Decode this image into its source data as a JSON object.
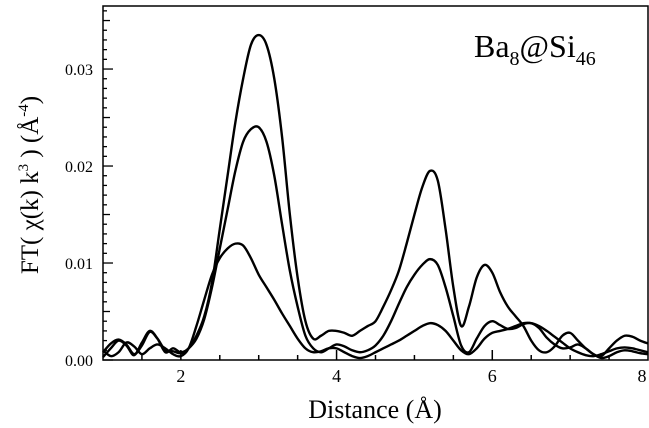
{
  "chart_data": {
    "type": "line",
    "xlabel": "Distance (Å)",
    "ylabel": {
      "p1": "FT( χ(k) k",
      "exp1": "3",
      "p2": " ) (Å",
      "exp2": "-4",
      "p3": ")"
    },
    "annotation": {
      "base": "Ba",
      "sub1": "8",
      "mid": "@Si",
      "sub2": "46"
    },
    "xlim": [
      1.0,
      8.0
    ],
    "ylim": [
      0.0,
      0.0365
    ],
    "xticks": [
      "2",
      "4",
      "6",
      "8"
    ],
    "yticks": [
      "0.00",
      "0.01",
      "0.02",
      "0.03"
    ],
    "grid": false,
    "series": [
      {
        "x": [
          1.0,
          1.1,
          1.2,
          1.3,
          1.4,
          1.5,
          1.6,
          1.7,
          1.8,
          1.9,
          2.0,
          2.1,
          2.2,
          2.3,
          2.4,
          2.5,
          2.6,
          2.7,
          2.8,
          2.9,
          3.0,
          3.1,
          3.2,
          3.3,
          3.4,
          3.5,
          3.6,
          3.7,
          3.8,
          3.9,
          4.0,
          4.1,
          4.2,
          4.3,
          4.4,
          4.5,
          4.6,
          4.7,
          4.8,
          4.9,
          5.0,
          5.1,
          5.2,
          5.3,
          5.4,
          5.5,
          5.6,
          5.7,
          5.8,
          5.9,
          6.0,
          6.1,
          6.2,
          6.3,
          6.4,
          6.5,
          6.6,
          6.7,
          6.8,
          6.9,
          7.0,
          7.1,
          7.2,
          7.3,
          7.4,
          7.5,
          7.6,
          7.7,
          7.8,
          7.9,
          8.0
        ],
        "y": [
          0.0003,
          0.0012,
          0.002,
          0.0015,
          0.0005,
          0.0018,
          0.003,
          0.0022,
          0.0008,
          0.0012,
          0.0008,
          0.0012,
          0.0025,
          0.0045,
          0.008,
          0.0135,
          0.019,
          0.0245,
          0.029,
          0.0325,
          0.0335,
          0.0325,
          0.029,
          0.023,
          0.015,
          0.0085,
          0.004,
          0.0022,
          0.0025,
          0.003,
          0.003,
          0.0028,
          0.0025,
          0.003,
          0.0035,
          0.004,
          0.0055,
          0.0072,
          0.0092,
          0.012,
          0.015,
          0.0178,
          0.0195,
          0.0185,
          0.0135,
          0.0075,
          0.0035,
          0.0055,
          0.0085,
          0.0098,
          0.009,
          0.007,
          0.0055,
          0.0045,
          0.0035,
          0.002,
          0.001,
          0.0008,
          0.0014,
          0.0025,
          0.0028,
          0.002,
          0.0012,
          0.0006,
          0.0004,
          0.0012,
          0.002,
          0.0025,
          0.0024,
          0.002,
          0.0017
        ]
      },
      {
        "x": [
          1.0,
          1.1,
          1.2,
          1.3,
          1.4,
          1.5,
          1.6,
          1.7,
          1.8,
          1.9,
          2.0,
          2.1,
          2.2,
          2.3,
          2.4,
          2.5,
          2.6,
          2.7,
          2.8,
          2.9,
          3.0,
          3.1,
          3.2,
          3.3,
          3.4,
          3.5,
          3.6,
          3.7,
          3.8,
          3.9,
          4.0,
          4.1,
          4.2,
          4.3,
          4.4,
          4.5,
          4.6,
          4.7,
          4.8,
          4.9,
          5.0,
          5.1,
          5.2,
          5.3,
          5.4,
          5.5,
          5.6,
          5.7,
          5.8,
          5.9,
          6.0,
          6.1,
          6.2,
          6.3,
          6.4,
          6.5,
          6.6,
          6.7,
          6.8,
          6.9,
          7.0,
          7.1,
          7.2,
          7.3,
          7.4,
          7.5,
          7.6,
          7.7,
          7.8,
          7.9,
          8.0
        ],
        "y": [
          0.0008,
          0.0017,
          0.0021,
          0.0016,
          0.0006,
          0.0015,
          0.0029,
          0.0022,
          0.001,
          0.0009,
          0.0007,
          0.0012,
          0.0022,
          0.0042,
          0.0075,
          0.0115,
          0.0155,
          0.0195,
          0.0225,
          0.0238,
          0.024,
          0.0225,
          0.019,
          0.014,
          0.0092,
          0.0055,
          0.0025,
          0.0012,
          0.0008,
          0.0012,
          0.0016,
          0.0014,
          0.001,
          0.0008,
          0.001,
          0.0015,
          0.0025,
          0.004,
          0.0058,
          0.0075,
          0.0088,
          0.0098,
          0.0104,
          0.0098,
          0.0075,
          0.0045,
          0.0015,
          0.0008,
          0.0022,
          0.0035,
          0.004,
          0.0036,
          0.0032,
          0.0033,
          0.0037,
          0.0038,
          0.0033,
          0.0023,
          0.0016,
          0.0012,
          0.0013,
          0.0016,
          0.0012,
          0.0006,
          0.0002,
          0.0004,
          0.0008,
          0.001,
          0.0009,
          0.0007,
          0.0006
        ]
      },
      {
        "x": [
          1.0,
          1.1,
          1.2,
          1.3,
          1.4,
          1.5,
          1.6,
          1.7,
          1.8,
          1.9,
          2.0,
          2.1,
          2.2,
          2.3,
          2.4,
          2.5,
          2.6,
          2.7,
          2.8,
          2.9,
          3.0,
          3.1,
          3.2,
          3.3,
          3.4,
          3.5,
          3.6,
          3.7,
          3.8,
          3.9,
          4.0,
          4.1,
          4.2,
          4.3,
          4.4,
          4.5,
          4.6,
          4.7,
          4.8,
          4.9,
          5.0,
          5.1,
          5.2,
          5.3,
          5.4,
          5.5,
          5.6,
          5.7,
          5.8,
          5.9,
          6.0,
          6.1,
          6.2,
          6.3,
          6.4,
          6.5,
          6.6,
          6.7,
          6.8,
          6.9,
          7.0,
          7.1,
          7.2,
          7.3,
          7.4,
          7.5,
          7.6,
          7.7,
          7.8,
          7.9,
          8.0
        ],
        "y": [
          0.001,
          0.0004,
          0.0008,
          0.0018,
          0.0014,
          0.0006,
          0.0012,
          0.0016,
          0.0012,
          0.0006,
          0.0004,
          0.0012,
          0.0035,
          0.0062,
          0.0088,
          0.0105,
          0.0115,
          0.012,
          0.0118,
          0.0105,
          0.0088,
          0.0075,
          0.0062,
          0.0048,
          0.0035,
          0.0022,
          0.0012,
          0.0008,
          0.0009,
          0.0012,
          0.0012,
          0.0008,
          0.0004,
          0.0002,
          0.0004,
          0.0008,
          0.0012,
          0.0016,
          0.002,
          0.0025,
          0.003,
          0.0035,
          0.0038,
          0.0036,
          0.003,
          0.002,
          0.001,
          0.0006,
          0.0012,
          0.0022,
          0.0028,
          0.003,
          0.0032,
          0.0035,
          0.0038,
          0.0038,
          0.0035,
          0.003,
          0.0024,
          0.0018,
          0.0012,
          0.0008,
          0.0005,
          0.0004,
          0.0006,
          0.0009,
          0.0012,
          0.0013,
          0.0012,
          0.001,
          0.0008
        ]
      }
    ]
  }
}
